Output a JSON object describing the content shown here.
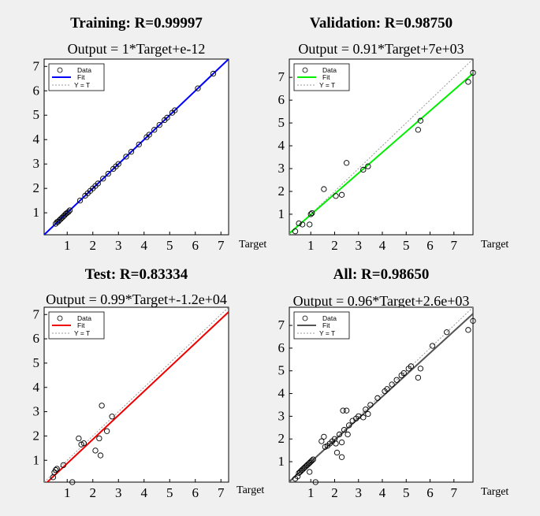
{
  "figure": {
    "background": "#f0f0f0",
    "axis_label_x": "Target",
    "legend_labels": [
      "Data",
      "Fit",
      "Y = T"
    ]
  },
  "chart_data": [
    {
      "type": "scatter",
      "title": "Training: R=0.99997",
      "subtitle": "Output = 1*Target+e-12",
      "xlabel": "Target",
      "ylabel": "",
      "xlim": [
        0.1,
        7.3
      ],
      "ylim": [
        0.1,
        7.3
      ],
      "xticks": [
        1,
        2,
        3,
        4,
        5,
        6,
        7
      ],
      "yticks": [
        1,
        2,
        3,
        4,
        5,
        6,
        7
      ],
      "fit": {
        "slope": 1.0,
        "intercept": 0.0,
        "color": "#0000ff",
        "name": "Fit"
      },
      "identity_line": {
        "name": "Y = T",
        "color": "#999999"
      },
      "legend": [
        "Data",
        "Fit",
        "Y = T"
      ],
      "legend_position": "top-left",
      "points": [
        [
          0.55,
          0.55
        ],
        [
          0.6,
          0.62
        ],
        [
          0.65,
          0.64
        ],
        [
          0.7,
          0.7
        ],
        [
          0.75,
          0.75
        ],
        [
          0.8,
          0.8
        ],
        [
          0.85,
          0.85
        ],
        [
          0.9,
          0.9
        ],
        [
          0.95,
          0.96
        ],
        [
          1.0,
          1.0
        ],
        [
          1.05,
          1.04
        ],
        [
          1.1,
          1.1
        ],
        [
          1.5,
          1.5
        ],
        [
          1.7,
          1.7
        ],
        [
          1.8,
          1.8
        ],
        [
          1.9,
          1.9
        ],
        [
          2.0,
          2.0
        ],
        [
          2.1,
          2.1
        ],
        [
          2.2,
          2.2
        ],
        [
          2.4,
          2.4
        ],
        [
          2.6,
          2.6
        ],
        [
          2.8,
          2.8
        ],
        [
          2.9,
          2.9
        ],
        [
          3.0,
          3.0
        ],
        [
          3.3,
          3.3
        ],
        [
          3.5,
          3.5
        ],
        [
          3.8,
          3.8
        ],
        [
          4.1,
          4.1
        ],
        [
          4.2,
          4.2
        ],
        [
          4.4,
          4.4
        ],
        [
          4.6,
          4.6
        ],
        [
          4.8,
          4.8
        ],
        [
          4.9,
          4.9
        ],
        [
          5.1,
          5.1
        ],
        [
          5.2,
          5.2
        ],
        [
          6.1,
          6.1
        ],
        [
          6.7,
          6.7
        ]
      ]
    },
    {
      "type": "scatter",
      "title": "Validation: R=0.98750",
      "subtitle": "Output = 0.91*Target+7e+03",
      "xlabel": "Target",
      "ylabel": "",
      "xlim": [
        0.1,
        7.8
      ],
      "ylim": [
        0.1,
        7.8
      ],
      "xticks": [
        1,
        2,
        3,
        4,
        5,
        6,
        7
      ],
      "yticks": [
        1,
        2,
        3,
        4,
        5,
        6,
        7
      ],
      "fit": {
        "slope": 0.91,
        "intercept": 0.07,
        "color": "#00ee00",
        "name": "Fit"
      },
      "identity_line": {
        "name": "Y = T",
        "color": "#999999"
      },
      "legend": [
        "Data",
        "Fit",
        "Y = T"
      ],
      "legend_position": "top-left",
      "points": [
        [
          0.35,
          0.25
        ],
        [
          0.5,
          0.6
        ],
        [
          0.65,
          0.55
        ],
        [
          0.95,
          0.55
        ],
        [
          1.0,
          1.0
        ],
        [
          1.05,
          1.05
        ],
        [
          1.55,
          2.1
        ],
        [
          2.05,
          1.8
        ],
        [
          2.3,
          1.85
        ],
        [
          2.5,
          3.25
        ],
        [
          3.2,
          2.95
        ],
        [
          3.4,
          3.1
        ],
        [
          5.5,
          4.7
        ],
        [
          5.6,
          5.1
        ],
        [
          7.6,
          6.8
        ],
        [
          7.8,
          7.2
        ]
      ]
    },
    {
      "type": "scatter",
      "title": "Test: R=0.83334",
      "subtitle": "Output = 0.99*Target+-1.2e+04",
      "xlabel": "Target",
      "ylabel": "",
      "xlim": [
        0.1,
        7.3
      ],
      "ylim": [
        0.1,
        7.3
      ],
      "xticks": [
        1,
        2,
        3,
        4,
        5,
        6,
        7
      ],
      "yticks": [
        1,
        2,
        3,
        4,
        5,
        6,
        7
      ],
      "fit": {
        "slope": 0.99,
        "intercept": -0.12,
        "color": "#ee0000",
        "name": "Fit"
      },
      "identity_line": {
        "name": "Y = T",
        "color": "#999999"
      },
      "legend": [
        "Data",
        "Fit",
        "Y = T"
      ],
      "legend_position": "top-left",
      "points": [
        [
          0.45,
          0.3
        ],
        [
          0.5,
          0.5
        ],
        [
          0.55,
          0.6
        ],
        [
          0.6,
          0.65
        ],
        [
          0.85,
          0.8
        ],
        [
          1.2,
          0.1
        ],
        [
          1.45,
          1.9
        ],
        [
          1.55,
          1.65
        ],
        [
          1.65,
          1.7
        ],
        [
          2.1,
          1.4
        ],
        [
          2.25,
          1.9
        ],
        [
          2.3,
          1.2
        ],
        [
          2.35,
          3.25
        ],
        [
          2.55,
          2.2
        ],
        [
          2.75,
          2.8
        ]
      ]
    },
    {
      "type": "scatter",
      "title": "All: R=0.98650",
      "subtitle": "Output = 0.96*Target+2.6e+03",
      "xlabel": "Target",
      "ylabel": "",
      "xlim": [
        0.1,
        7.8
      ],
      "ylim": [
        0.1,
        7.8
      ],
      "xticks": [
        1,
        2,
        3,
        4,
        5,
        6,
        7
      ],
      "yticks": [
        1,
        2,
        3,
        4,
        5,
        6,
        7
      ],
      "fit": {
        "slope": 0.96,
        "intercept": 0.026,
        "color": "#555555",
        "name": "Fit"
      },
      "identity_line": {
        "name": "Y = T",
        "color": "#999999"
      },
      "legend": [
        "Data",
        "Fit",
        "Y = T"
      ],
      "legend_position": "top-left",
      "points": [
        [
          0.35,
          0.25
        ],
        [
          0.45,
          0.35
        ],
        [
          0.5,
          0.5
        ],
        [
          0.55,
          0.55
        ],
        [
          0.6,
          0.6
        ],
        [
          0.65,
          0.65
        ],
        [
          0.7,
          0.7
        ],
        [
          0.75,
          0.75
        ],
        [
          0.8,
          0.8
        ],
        [
          0.85,
          0.85
        ],
        [
          0.9,
          0.9
        ],
        [
          0.95,
          0.95
        ],
        [
          1.0,
          1.0
        ],
        [
          1.05,
          1.05
        ],
        [
          1.1,
          1.1
        ],
        [
          0.95,
          0.55
        ],
        [
          1.2,
          0.1
        ],
        [
          1.45,
          1.9
        ],
        [
          1.55,
          2.1
        ],
        [
          1.6,
          1.65
        ],
        [
          1.7,
          1.7
        ],
        [
          1.8,
          1.8
        ],
        [
          1.9,
          1.9
        ],
        [
          2.0,
          2.0
        ],
        [
          2.05,
          1.8
        ],
        [
          2.1,
          1.4
        ],
        [
          2.2,
          2.2
        ],
        [
          2.3,
          1.2
        ],
        [
          2.3,
          1.85
        ],
        [
          2.35,
          3.25
        ],
        [
          2.4,
          2.4
        ],
        [
          2.5,
          3.25
        ],
        [
          2.55,
          2.2
        ],
        [
          2.6,
          2.6
        ],
        [
          2.75,
          2.8
        ],
        [
          2.9,
          2.9
        ],
        [
          3.0,
          3.0
        ],
        [
          3.2,
          2.95
        ],
        [
          3.3,
          3.3
        ],
        [
          3.4,
          3.1
        ],
        [
          3.5,
          3.5
        ],
        [
          3.8,
          3.8
        ],
        [
          4.1,
          4.1
        ],
        [
          4.2,
          4.2
        ],
        [
          4.4,
          4.4
        ],
        [
          4.6,
          4.6
        ],
        [
          4.8,
          4.8
        ],
        [
          4.9,
          4.9
        ],
        [
          5.1,
          5.1
        ],
        [
          5.2,
          5.2
        ],
        [
          5.5,
          4.7
        ],
        [
          5.6,
          5.1
        ],
        [
          6.1,
          6.1
        ],
        [
          6.7,
          6.7
        ],
        [
          7.6,
          6.8
        ],
        [
          7.8,
          7.2
        ]
      ]
    }
  ]
}
